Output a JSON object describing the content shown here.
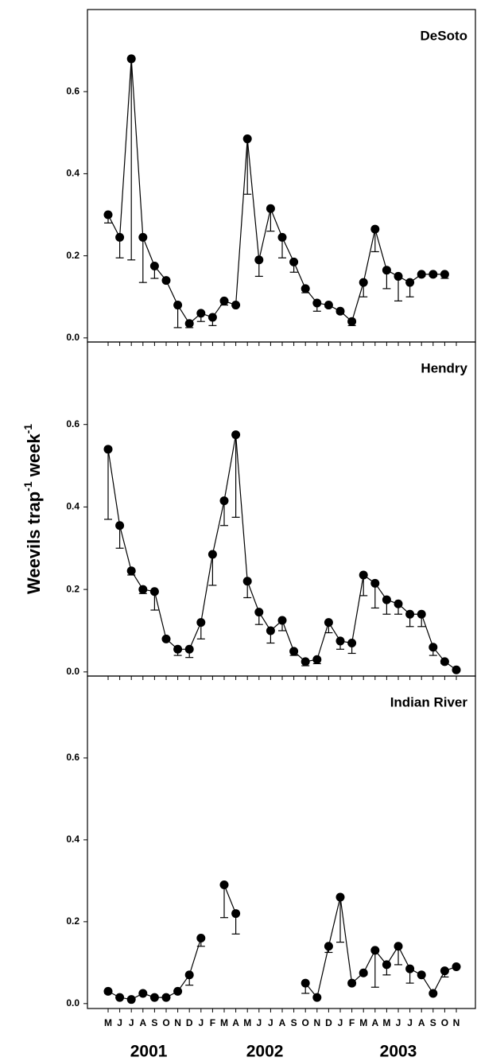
{
  "y_label": [
    {
      "text": "Weevils trap",
      "sup": false
    },
    {
      "text": "-1",
      "sup": true
    },
    {
      "text": " week",
      "sup": false
    },
    {
      "text": "-1",
      "sup": true
    }
  ],
  "chart_data": [
    {
      "type": "line",
      "title": "DeSoto",
      "color": "#000000",
      "categories": [
        "M",
        "J",
        "J",
        "A",
        "S",
        "O",
        "N",
        "D",
        "J",
        "F",
        "M",
        "A",
        "M",
        "J",
        "J",
        "A",
        "S",
        "O",
        "N",
        "D",
        "J",
        "F",
        "M",
        "A",
        "M",
        "J",
        "J",
        "A",
        "S",
        "O",
        "N"
      ],
      "values": [
        0.3,
        0.245,
        0.68,
        0.245,
        0.175,
        0.14,
        0.08,
        0.035,
        0.06,
        0.05,
        0.09,
        0.08,
        0.485,
        0.19,
        0.315,
        0.245,
        0.185,
        0.12,
        0.085,
        0.08,
        0.065,
        0.04,
        0.135,
        0.265,
        0.165,
        0.15,
        0.135,
        0.155,
        0.155,
        0.155,
        null
      ],
      "errors": [
        0.02,
        0.05,
        0.49,
        0.11,
        0.03,
        null,
        0.055,
        0.01,
        0.02,
        0.02,
        0.01,
        null,
        0.135,
        0.04,
        0.055,
        0.05,
        0.025,
        0.01,
        0.02,
        0.005,
        0.005,
        0.01,
        0.035,
        0.055,
        0.045,
        0.06,
        0.035,
        0.005,
        0.005,
        0.01,
        null
      ],
      "ylim": [
        -0.01,
        0.8
      ],
      "yticks": [
        {
          "value": 0,
          "label": "0.0"
        },
        {
          "value": 0.2,
          "label": "0.2"
        },
        {
          "value": 0.4,
          "label": "0.4"
        },
        {
          "value": 0.6,
          "label": "0.6"
        }
      ]
    },
    {
      "type": "line",
      "title": "Hendry",
      "color": "#000000",
      "categories": [
        "M",
        "J",
        "J",
        "A",
        "S",
        "O",
        "N",
        "D",
        "J",
        "F",
        "M",
        "A",
        "M",
        "J",
        "J",
        "A",
        "S",
        "O",
        "N",
        "D",
        "J",
        "F",
        "M",
        "A",
        "M",
        "J",
        "J",
        "A",
        "S",
        "O",
        "N"
      ],
      "values": [
        0.54,
        0.355,
        0.245,
        0.2,
        0.195,
        0.08,
        0.055,
        0.055,
        0.12,
        0.285,
        0.415,
        0.575,
        0.22,
        0.145,
        0.1,
        0.125,
        0.05,
        0.025,
        0.03,
        0.12,
        0.075,
        0.07,
        0.235,
        0.215,
        0.175,
        0.165,
        0.14,
        0.14,
        0.06,
        0.025,
        0.005
      ],
      "errors": [
        0.17,
        0.055,
        0.01,
        0.01,
        0.045,
        null,
        0.015,
        0.02,
        0.04,
        0.075,
        0.06,
        0.2,
        0.04,
        0.03,
        0.03,
        0.025,
        0.01,
        0.01,
        0.01,
        0.025,
        0.02,
        0.025,
        0.05,
        0.06,
        0.035,
        0.025,
        0.03,
        0.03,
        0.02,
        0.005,
        null
      ],
      "ylim": [
        -0.01,
        0.8
      ],
      "yticks": [
        {
          "value": 0,
          "label": "0.0"
        },
        {
          "value": 0.2,
          "label": "0.2"
        },
        {
          "value": 0.4,
          "label": "0.4"
        },
        {
          "value": 0.6,
          "label": "0.6"
        }
      ]
    },
    {
      "type": "line",
      "title": "Indian River",
      "color": "#000000",
      "categories": [
        "M",
        "J",
        "J",
        "A",
        "S",
        "O",
        "N",
        "D",
        "J",
        "F",
        "M",
        "A",
        "M",
        "J",
        "J",
        "A",
        "S",
        "O",
        "N",
        "D",
        "J",
        "F",
        "M",
        "A",
        "M",
        "J",
        "J",
        "A",
        "S",
        "O",
        "N"
      ],
      "values": [
        0.03,
        0.015,
        0.01,
        0.025,
        0.015,
        0.015,
        0.03,
        0.07,
        0.16,
        null,
        0.29,
        0.22,
        null,
        null,
        null,
        null,
        null,
        0.05,
        0.015,
        0.14,
        0.26,
        0.05,
        0.075,
        0.13,
        0.095,
        0.14,
        0.085,
        0.07,
        0.025,
        0.08,
        0.09
      ],
      "errors": [
        0.005,
        null,
        null,
        null,
        null,
        null,
        null,
        0.025,
        0.02,
        null,
        0.08,
        0.05,
        null,
        null,
        null,
        null,
        null,
        0.025,
        null,
        0.015,
        0.11,
        0.005,
        0.005,
        0.09,
        0.025,
        0.045,
        0.035,
        null,
        null,
        0.015,
        null
      ],
      "ylim": [
        -0.012,
        0.8
      ],
      "yticks": [
        {
          "value": 0,
          "label": "0.0"
        },
        {
          "value": 0.2,
          "label": "0.2"
        },
        {
          "value": 0.4,
          "label": "0.4"
        },
        {
          "value": 0.6,
          "label": "0.6"
        }
      ],
      "years": [
        "2001",
        "2002",
        "2003"
      ]
    }
  ]
}
